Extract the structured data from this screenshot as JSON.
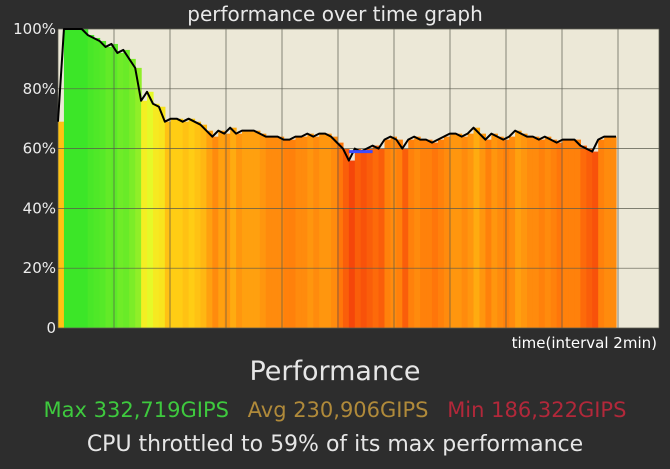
{
  "header": {
    "title": "performance over time graph"
  },
  "chart_data": {
    "type": "area",
    "title": "performance over time graph",
    "xlabel": "time(interval 2min)",
    "ylabel": "",
    "y_ticks": [
      "100%",
      "80%",
      "60%",
      "40%",
      "20%",
      "0"
    ],
    "ylim": [
      0,
      100
    ],
    "grid": true,
    "background_color": "#ece8d7",
    "min_marker_percent": 59,
    "series": [
      {
        "values": [
          69,
          100,
          100,
          100,
          100,
          98,
          97,
          96,
          94,
          95,
          92,
          93,
          90,
          87,
          76,
          79,
          75,
          74,
          69,
          70,
          70,
          69,
          70,
          69,
          68,
          66,
          64,
          66,
          65,
          67,
          65,
          66,
          66,
          66,
          65,
          64,
          64,
          64,
          63,
          63,
          64,
          64,
          65,
          64,
          65,
          65,
          64,
          62,
          60,
          56,
          60,
          59,
          60,
          61,
          60,
          63,
          64,
          63,
          60,
          63,
          64,
          63,
          63,
          62,
          63,
          64,
          65,
          65,
          64,
          65,
          67,
          65,
          63,
          65,
          64,
          63,
          64,
          66,
          65,
          64,
          64,
          63,
          64,
          63,
          62,
          63,
          63,
          63,
          61,
          60,
          59,
          63,
          64,
          64,
          64
        ]
      }
    ]
  },
  "summary": {
    "heading": "Performance",
    "max_label": "Max 332,719GIPS",
    "avg_label": "Avg 230,906GIPS",
    "min_label": "Min 186,322GIPS",
    "throttle_text": "CPU throttled to 59% of its max performance"
  },
  "colors": {
    "max": "#3ec93e",
    "avg": "#b08a3a",
    "min": "#b2283a",
    "curve": "#000000",
    "min_marker": "#3b4cff"
  }
}
